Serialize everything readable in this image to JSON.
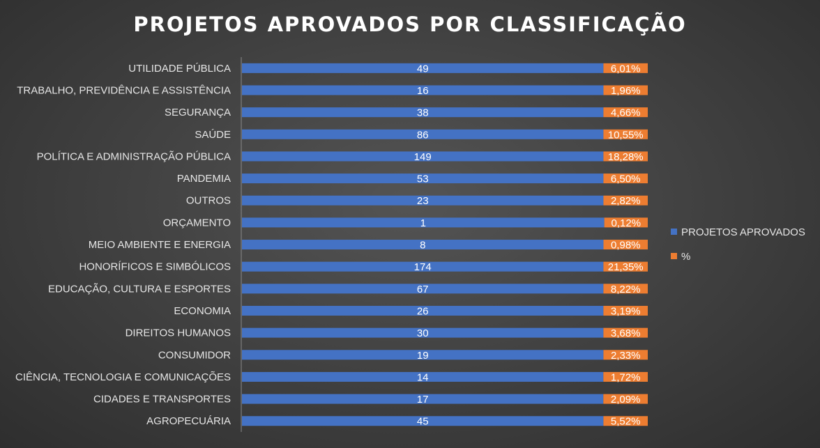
{
  "chart_data": {
    "type": "bar",
    "orientation": "horizontal",
    "stacking": "percent",
    "title": "PROJETOS APROVADOS POR CLASSIFICAÇÃO",
    "categories": [
      "UTILIDADE PÚBLICA",
      "TRABALHO, PREVIDÊNCIA E ASSISTÊNCIA",
      "SEGURANÇA",
      "SAÚDE",
      "POLÍTICA E ADMINISTRAÇÃO PÚBLICA",
      "PANDEMIA",
      "OUTROS",
      "ORÇAMENTO",
      "MEIO AMBIENTE E ENERGIA",
      "HONORÍFICOS E SIMBÓLICOS",
      "EDUCAÇÃO, CULTURA E ESPORTES",
      "ECONOMIA",
      "DIREITOS HUMANOS",
      "CONSUMIDOR",
      "CIÊNCIA, TECNOLOGIA E COMUNICAÇÕES",
      "CIDADES E TRANSPORTES",
      "AGROPECUÁRIA"
    ],
    "series": [
      {
        "name": "PROJETOS APROVADOS",
        "color": "#4472c4",
        "values": [
          49,
          16,
          38,
          86,
          149,
          53,
          23,
          1,
          8,
          174,
          67,
          26,
          30,
          19,
          14,
          17,
          45
        ],
        "labels": [
          "49",
          "16",
          "38",
          "86",
          "149",
          "53",
          "23",
          "1",
          "8",
          "174",
          "67",
          "26",
          "30",
          "19",
          "14",
          "17",
          "45"
        ]
      },
      {
        "name": "%",
        "color": "#ed7d31",
        "values": [
          6.01,
          1.96,
          4.66,
          10.55,
          18.28,
          6.5,
          2.82,
          0.12,
          0.98,
          21.35,
          8.22,
          3.19,
          3.68,
          2.33,
          1.72,
          2.09,
          5.52
        ],
        "labels": [
          "6,01%",
          "1,96%",
          "4,66%",
          "10,55%",
          "18,28%",
          "6,50%",
          "2,82%",
          "0,12%",
          "0,98%",
          "21,35%",
          "8,22%",
          "3,19%",
          "3,68%",
          "2,33%",
          "1,72%",
          "2,09%",
          "5,52%"
        ]
      }
    ],
    "legend_position": "right",
    "grid": false
  }
}
